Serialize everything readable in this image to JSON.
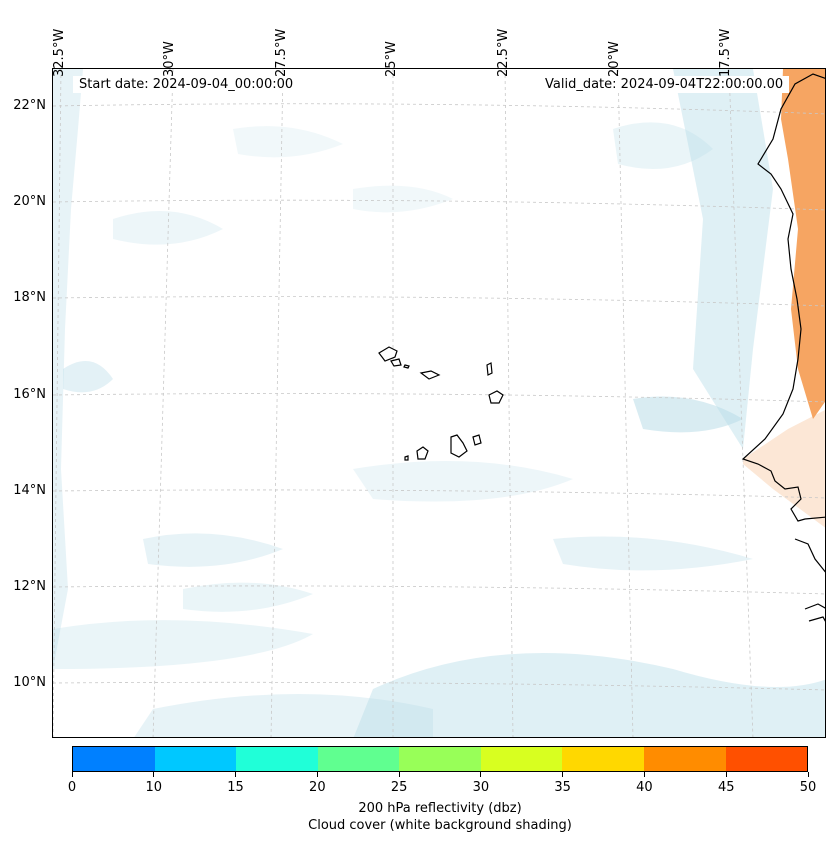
{
  "map": {
    "start_date": "Start date: 2024-09-04_00:00:00",
    "valid_date": "Valid_date: 2024-09-04T22:00:00.00",
    "lon_labels": [
      "32.5°W",
      "30°W",
      "27.5°W",
      "25°W",
      "22.5°W",
      "20°W",
      "17.5°W"
    ],
    "lat_labels": [
      "22°N",
      "20°N",
      "18°N",
      "16°N",
      "14°N",
      "12°N",
      "10°N"
    ],
    "gridlines": true,
    "shading_colors": {
      "cloud": "#b9dde8",
      "warm": "#f5a05a"
    }
  },
  "colorbar": {
    "ticks": [
      "0",
      "10",
      "15",
      "20",
      "25",
      "30",
      "35",
      "40",
      "45",
      "50"
    ],
    "colors": [
      "#0080ff",
      "#00c8ff",
      "#20ffd8",
      "#60ff90",
      "#98ff58",
      "#d8ff20",
      "#ffd800",
      "#ff8c00",
      "#ff5000"
    ],
    "label_line1": "200 hPa reflectivity (dbz)",
    "label_line2": "Cloud cover (white background shading)"
  }
}
